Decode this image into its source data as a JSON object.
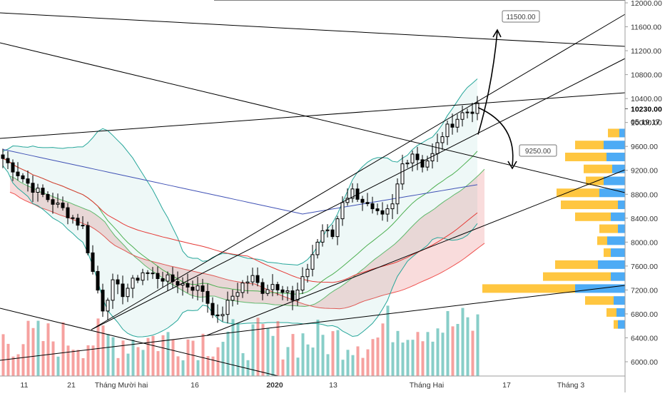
{
  "chart_data": {
    "type": "candlestick",
    "instrument_hint": "BTC daily",
    "y_axis": {
      "side": "right",
      "ticks": [
        12000,
        11600,
        11200,
        10800,
        10400,
        10000,
        9600,
        9200,
        8800,
        8400,
        8000,
        7600,
        7200,
        6800,
        6400,
        6000
      ],
      "tick_labels": [
        "12000.00",
        "11600.00",
        "11200.00",
        "10800.00",
        "10400.00",
        "10000.00",
        "9600.00",
        "9200.00",
        "8800.00",
        "8400.00",
        "8000.00",
        "7600.00",
        "7200.00",
        "6800.00",
        "6400.00",
        "6000.00"
      ],
      "range": [
        5880,
        12060
      ]
    },
    "x_axis": {
      "labels": [
        {
          "text": "11",
          "bold": false
        },
        {
          "text": "21",
          "bold": false
        },
        {
          "text": "Tháng Mười hai",
          "bold": false
        },
        {
          "text": "16",
          "bold": false
        },
        {
          "text": "2020",
          "bold": true
        },
        {
          "text": "13",
          "bold": false
        },
        {
          "text": "Tháng Hai",
          "bold": false
        },
        {
          "text": "17",
          "bold": false
        },
        {
          "text": "Tháng 3",
          "bold": false
        }
      ]
    },
    "price_labels": {
      "last_price": "10230.00",
      "countdown": "05:19:17",
      "target_up": "11500.00",
      "target_down": "9250.00"
    },
    "colors": {
      "up": "#26a69a",
      "down": "#ef5350",
      "candle": "#000000",
      "bb": "#26a69a",
      "ma_fast": "#4caf50",
      "ma_mid": "#e53935",
      "ma_slow": "#3f51b5",
      "cloud_bull": "#a5d6a7",
      "cloud_bear": "#ef9a9a",
      "vp_up": "#2196f3",
      "vp_down": "#ffb300"
    },
    "grid": false,
    "legend": "none"
  }
}
